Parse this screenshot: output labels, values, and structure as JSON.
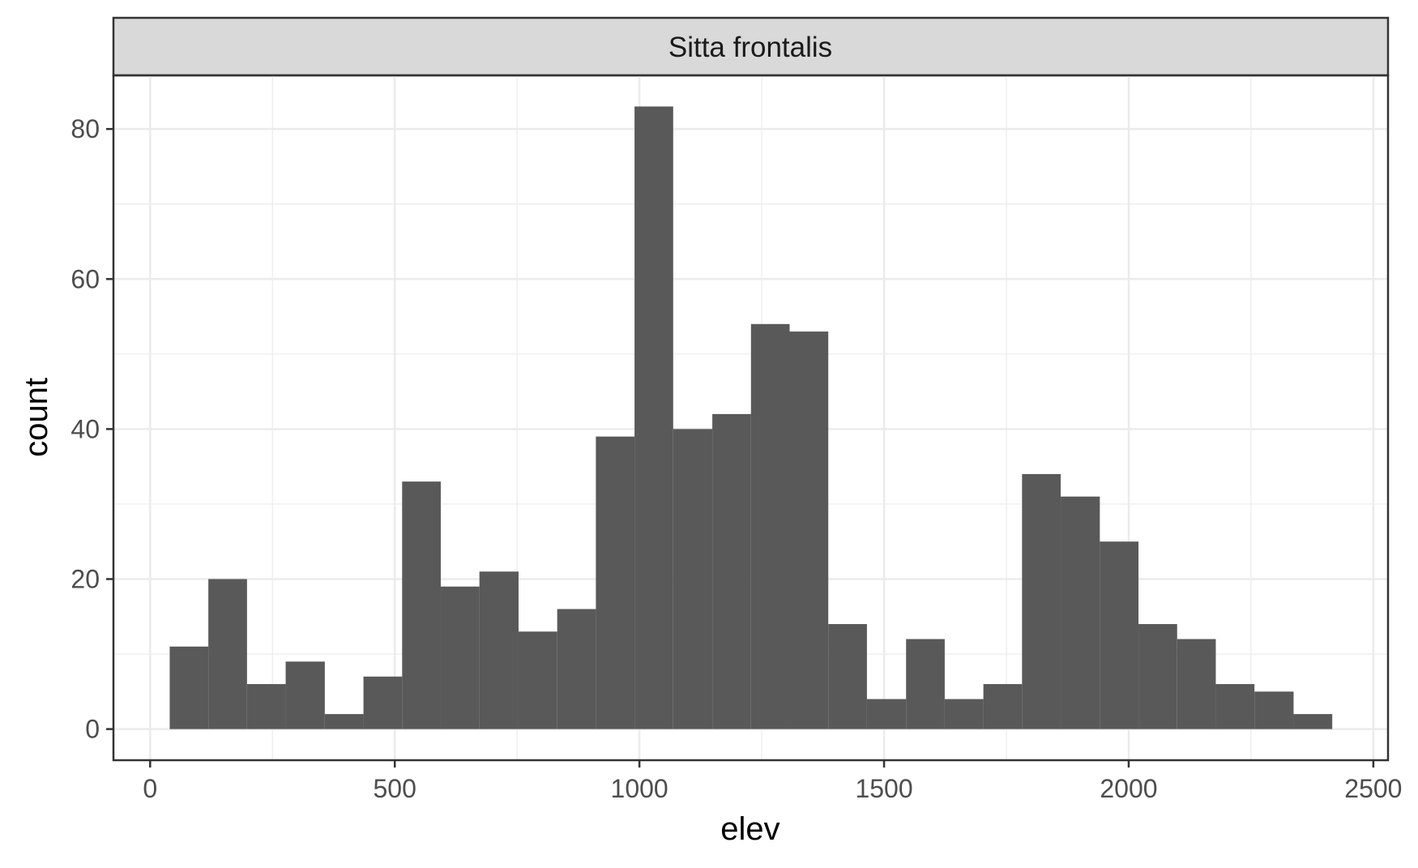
{
  "chart_data": {
    "type": "bar",
    "subtype": "histogram",
    "facet_label": "Sitta frontalis",
    "xlabel": "elev",
    "ylabel": "count",
    "xlim": [
      -75,
      2530
    ],
    "ylim": [
      -4.15,
      87.15
    ],
    "x_ticks": [
      0,
      500,
      1000,
      1500,
      2000,
      2500
    ],
    "y_ticks": [
      0,
      20,
      40,
      60,
      80
    ],
    "x_minor_ticks": [
      250,
      750,
      1250,
      1750,
      2250
    ],
    "y_minor_ticks": [
      10,
      30,
      50,
      70
    ],
    "grid": true,
    "colors": {
      "bar_fill": "#595959",
      "panel_border": "#333333",
      "strip_fill": "#d9d9d9",
      "grid": "#ebebeb"
    },
    "bins": [
      {
        "x0": 40,
        "x1": 119,
        "count": 11
      },
      {
        "x0": 119,
        "x1": 198,
        "count": 20
      },
      {
        "x0": 198,
        "x1": 277,
        "count": 6
      },
      {
        "x0": 277,
        "x1": 357,
        "count": 9
      },
      {
        "x0": 357,
        "x1": 436,
        "count": 2
      },
      {
        "x0": 436,
        "x1": 515,
        "count": 7
      },
      {
        "x0": 515,
        "x1": 594,
        "count": 33
      },
      {
        "x0": 594,
        "x1": 673,
        "count": 19
      },
      {
        "x0": 673,
        "x1": 753,
        "count": 21
      },
      {
        "x0": 753,
        "x1": 832,
        "count": 13
      },
      {
        "x0": 832,
        "x1": 911,
        "count": 16
      },
      {
        "x0": 911,
        "x1": 990,
        "count": 39
      },
      {
        "x0": 990,
        "x1": 1069,
        "count": 83
      },
      {
        "x0": 1069,
        "x1": 1149,
        "count": 40
      },
      {
        "x0": 1149,
        "x1": 1228,
        "count": 42
      },
      {
        "x0": 1228,
        "x1": 1307,
        "count": 54
      },
      {
        "x0": 1307,
        "x1": 1386,
        "count": 53
      },
      {
        "x0": 1386,
        "x1": 1465,
        "count": 14
      },
      {
        "x0": 1465,
        "x1": 1545,
        "count": 4
      },
      {
        "x0": 1545,
        "x1": 1624,
        "count": 12
      },
      {
        "x0": 1624,
        "x1": 1703,
        "count": 4
      },
      {
        "x0": 1703,
        "x1": 1782,
        "count": 6
      },
      {
        "x0": 1782,
        "x1": 1861,
        "count": 34
      },
      {
        "x0": 1861,
        "x1": 1941,
        "count": 31
      },
      {
        "x0": 1941,
        "x1": 2020,
        "count": 25
      },
      {
        "x0": 2020,
        "x1": 2099,
        "count": 14
      },
      {
        "x0": 2099,
        "x1": 2178,
        "count": 12
      },
      {
        "x0": 2178,
        "x1": 2257,
        "count": 6
      },
      {
        "x0": 2257,
        "x1": 2337,
        "count": 5
      },
      {
        "x0": 2337,
        "x1": 2416,
        "count": 2
      }
    ]
  }
}
